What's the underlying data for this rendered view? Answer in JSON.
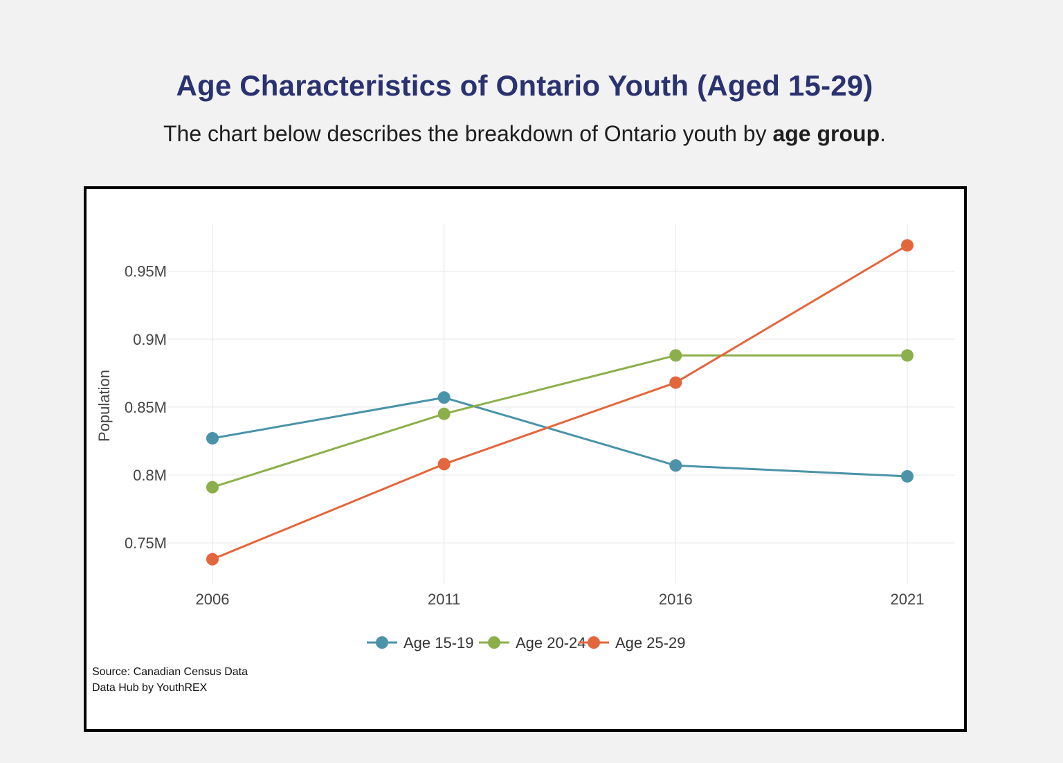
{
  "header": {
    "title": "Age Characteristics of Ontario Youth (Aged 15-29)",
    "subtitle_prefix": "The chart below describes the breakdown of Ontario youth by ",
    "subtitle_bold": "age group",
    "subtitle_suffix": "."
  },
  "source": {
    "line1": "Source: Canadian Census Data",
    "line2": "Data Hub by YouthREX"
  },
  "chart_data": {
    "type": "line",
    "x": [
      2006,
      2011,
      2016,
      2021
    ],
    "x_tick_labels": [
      "2006",
      "2011",
      "2016",
      "2021"
    ],
    "ylabel": "Population",
    "xlabel": "",
    "ylim": [
      0.72,
      0.985
    ],
    "y_ticks": [
      0.75,
      0.8,
      0.85,
      0.9,
      0.95
    ],
    "y_tick_labels": [
      "0.75M",
      "0.8M",
      "0.85M",
      "0.9M",
      "0.95M"
    ],
    "grid": true,
    "legend": "bottom",
    "series": [
      {
        "name": "Age 15-19",
        "color": "#4a93a8",
        "values": [
          0.827,
          0.857,
          0.807,
          0.799
        ]
      },
      {
        "name": "Age 20-24",
        "color": "#8caf4b",
        "values": [
          0.791,
          0.845,
          0.888,
          0.888
        ]
      },
      {
        "name": "Age 25-29",
        "color": "#e3663c",
        "values": [
          0.738,
          0.808,
          0.868,
          0.969
        ]
      }
    ]
  }
}
